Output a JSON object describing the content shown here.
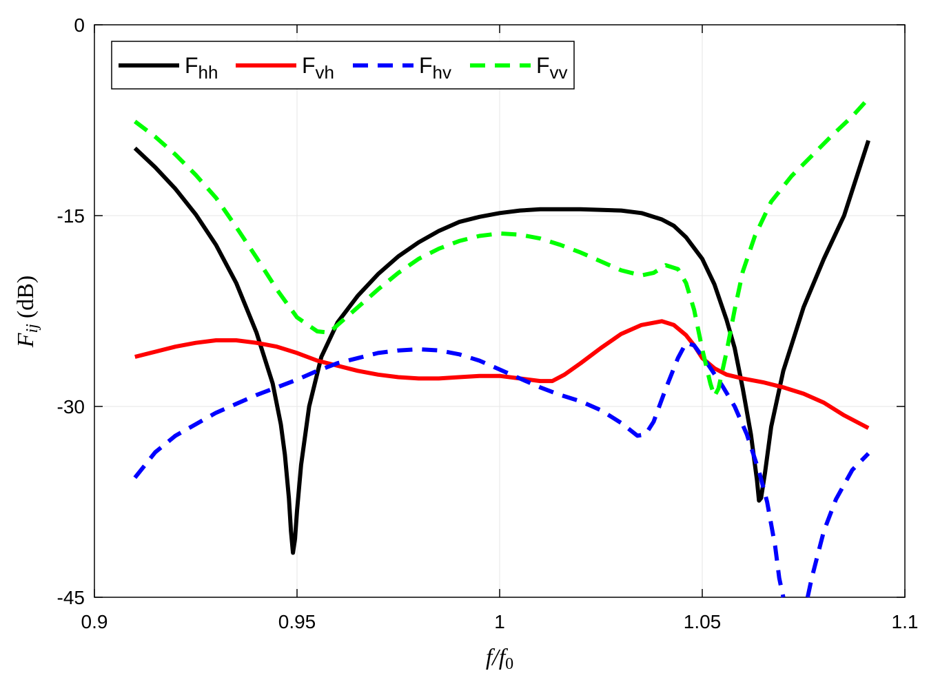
{
  "chart_data": {
    "type": "line",
    "xlabel": {
      "f": "f",
      "slash": "/",
      "f0": "f",
      "sub0": "0"
    },
    "ylabel": {
      "F": "F",
      "sub": "ij",
      "unit": "(dB)"
    },
    "xlim": [
      0.9,
      1.1
    ],
    "ylim": [
      -45,
      0
    ],
    "xticks": [
      0.9,
      0.95,
      1.0,
      1.05,
      1.1
    ],
    "xtick_labels": [
      "0.9",
      "0.95",
      "1",
      "1.05",
      "1.1"
    ],
    "yticks": [
      -45,
      -30,
      -15,
      0
    ],
    "ytick_labels": [
      "-45",
      "-30",
      "-15",
      "0"
    ],
    "grid": true,
    "legend_position": "top-left, horizontal",
    "series": [
      {
        "name": "F",
        "sub": "hh",
        "color": "#000000",
        "style": "solid",
        "points": [
          [
            0.91,
            -9.7
          ],
          [
            0.915,
            -11.2
          ],
          [
            0.92,
            -12.9
          ],
          [
            0.925,
            -14.9
          ],
          [
            0.93,
            -17.3
          ],
          [
            0.935,
            -20.3
          ],
          [
            0.94,
            -24.2
          ],
          [
            0.944,
            -28.2
          ],
          [
            0.946,
            -31.4
          ],
          [
            0.947,
            -33.8
          ],
          [
            0.948,
            -37.2
          ],
          [
            0.9485,
            -39.8
          ],
          [
            0.949,
            -41.5
          ],
          [
            0.9495,
            -40.4
          ],
          [
            0.95,
            -38.2
          ],
          [
            0.951,
            -34.6
          ],
          [
            0.953,
            -30.0
          ],
          [
            0.956,
            -26.1
          ],
          [
            0.96,
            -23.4
          ],
          [
            0.965,
            -21.3
          ],
          [
            0.97,
            -19.6
          ],
          [
            0.975,
            -18.2
          ],
          [
            0.98,
            -17.1
          ],
          [
            0.985,
            -16.2
          ],
          [
            0.99,
            -15.5
          ],
          [
            0.995,
            -15.1
          ],
          [
            1.0,
            -14.8
          ],
          [
            1.005,
            -14.6
          ],
          [
            1.01,
            -14.5
          ],
          [
            1.02,
            -14.5
          ],
          [
            1.03,
            -14.6
          ],
          [
            1.035,
            -14.8
          ],
          [
            1.04,
            -15.3
          ],
          [
            1.043,
            -15.8
          ],
          [
            1.046,
            -16.7
          ],
          [
            1.05,
            -18.4
          ],
          [
            1.053,
            -20.4
          ],
          [
            1.056,
            -23.2
          ],
          [
            1.058,
            -25.4
          ],
          [
            1.06,
            -28.6
          ],
          [
            1.062,
            -32.2
          ],
          [
            1.0635,
            -35.8
          ],
          [
            1.064,
            -37.4
          ],
          [
            1.0645,
            -37.2
          ],
          [
            1.0655,
            -35.2
          ],
          [
            1.067,
            -31.6
          ],
          [
            1.07,
            -27.2
          ],
          [
            1.075,
            -22.2
          ],
          [
            1.08,
            -18.4
          ],
          [
            1.085,
            -15.0
          ],
          [
            1.091,
            -9.1
          ]
        ]
      },
      {
        "name": "F",
        "sub": "vh",
        "color": "#ff0000",
        "style": "solid",
        "points": [
          [
            0.91,
            -26.1
          ],
          [
            0.915,
            -25.7
          ],
          [
            0.92,
            -25.3
          ],
          [
            0.925,
            -25.0
          ],
          [
            0.93,
            -24.8
          ],
          [
            0.935,
            -24.8
          ],
          [
            0.94,
            -25.0
          ],
          [
            0.945,
            -25.3
          ],
          [
            0.95,
            -25.8
          ],
          [
            0.955,
            -26.4
          ],
          [
            0.96,
            -26.8
          ],
          [
            0.965,
            -27.2
          ],
          [
            0.97,
            -27.5
          ],
          [
            0.975,
            -27.7
          ],
          [
            0.98,
            -27.8
          ],
          [
            0.985,
            -27.8
          ],
          [
            0.99,
            -27.7
          ],
          [
            0.995,
            -27.6
          ],
          [
            1.0,
            -27.6
          ],
          [
            1.005,
            -27.8
          ],
          [
            1.01,
            -28.0
          ],
          [
            1.013,
            -28.0
          ],
          [
            1.016,
            -27.5
          ],
          [
            1.02,
            -26.6
          ],
          [
            1.025,
            -25.4
          ],
          [
            1.03,
            -24.3
          ],
          [
            1.035,
            -23.6
          ],
          [
            1.04,
            -23.3
          ],
          [
            1.043,
            -23.6
          ],
          [
            1.046,
            -24.4
          ],
          [
            1.048,
            -25.2
          ],
          [
            1.05,
            -26.2
          ],
          [
            1.053,
            -27.0
          ],
          [
            1.056,
            -27.5
          ],
          [
            1.06,
            -27.8
          ],
          [
            1.065,
            -28.1
          ],
          [
            1.07,
            -28.5
          ],
          [
            1.075,
            -29.0
          ],
          [
            1.08,
            -29.7
          ],
          [
            1.085,
            -30.7
          ],
          [
            1.091,
            -31.7
          ]
        ]
      },
      {
        "name": "F",
        "sub": "hv",
        "color": "#0000ff",
        "style": "dashed",
        "points": [
          [
            0.91,
            -35.6
          ],
          [
            0.915,
            -33.6
          ],
          [
            0.92,
            -32.3
          ],
          [
            0.925,
            -31.4
          ],
          [
            0.93,
            -30.5
          ],
          [
            0.935,
            -29.8
          ],
          [
            0.94,
            -29.1
          ],
          [
            0.945,
            -28.5
          ],
          [
            0.95,
            -27.9
          ],
          [
            0.955,
            -27.2
          ],
          [
            0.96,
            -26.6
          ],
          [
            0.965,
            -26.2
          ],
          [
            0.97,
            -25.8
          ],
          [
            0.975,
            -25.6
          ],
          [
            0.98,
            -25.5
          ],
          [
            0.985,
            -25.6
          ],
          [
            0.99,
            -25.9
          ],
          [
            0.995,
            -26.4
          ],
          [
            1.0,
            -27.1
          ],
          [
            1.005,
            -27.8
          ],
          [
            1.01,
            -28.5
          ],
          [
            1.015,
            -29.1
          ],
          [
            1.02,
            -29.6
          ],
          [
            1.025,
            -30.3
          ],
          [
            1.03,
            -31.3
          ],
          [
            1.034,
            -32.3
          ],
          [
            1.036,
            -32.2
          ],
          [
            1.038,
            -31.2
          ],
          [
            1.041,
            -28.6
          ],
          [
            1.044,
            -26.2
          ],
          [
            1.046,
            -25.0
          ],
          [
            1.048,
            -25.2
          ],
          [
            1.051,
            -26.5
          ],
          [
            1.055,
            -28.4
          ],
          [
            1.058,
            -30.0
          ],
          [
            1.061,
            -32.2
          ],
          [
            1.064,
            -35.1
          ],
          [
            1.066,
            -37.5
          ],
          [
            1.068,
            -41.0
          ],
          [
            1.069,
            -43.5
          ],
          [
            1.07,
            -45.0
          ]
        ]
      },
      {
        "name": "",
        "color": "#0000ff",
        "style": "dashed",
        "points": [
          [
            1.076,
            -45.0
          ],
          [
            1.077,
            -43.5
          ],
          [
            1.08,
            -39.8
          ],
          [
            1.083,
            -37.3
          ],
          [
            1.087,
            -35.0
          ],
          [
            1.091,
            -33.7
          ]
        ]
      },
      {
        "name": "F",
        "sub": "vv",
        "color": "#00ff00",
        "style": "dashed",
        "points": [
          [
            0.91,
            -7.6
          ],
          [
            0.915,
            -8.8
          ],
          [
            0.92,
            -10.2
          ],
          [
            0.925,
            -11.8
          ],
          [
            0.93,
            -13.6
          ],
          [
            0.935,
            -15.9
          ],
          [
            0.94,
            -18.3
          ],
          [
            0.945,
            -20.8
          ],
          [
            0.95,
            -23.0
          ],
          [
            0.955,
            -24.1
          ],
          [
            0.958,
            -24.2
          ],
          [
            0.96,
            -23.6
          ],
          [
            0.965,
            -22.2
          ],
          [
            0.97,
            -20.8
          ],
          [
            0.975,
            -19.5
          ],
          [
            0.98,
            -18.4
          ],
          [
            0.985,
            -17.6
          ],
          [
            0.99,
            -17.0
          ],
          [
            0.995,
            -16.6
          ],
          [
            1.0,
            -16.4
          ],
          [
            1.005,
            -16.5
          ],
          [
            1.01,
            -16.8
          ],
          [
            1.015,
            -17.3
          ],
          [
            1.02,
            -17.9
          ],
          [
            1.025,
            -18.6
          ],
          [
            1.03,
            -19.3
          ],
          [
            1.035,
            -19.7
          ],
          [
            1.038,
            -19.5
          ],
          [
            1.041,
            -18.9
          ],
          [
            1.044,
            -19.2
          ],
          [
            1.046,
            -20.3
          ],
          [
            1.048,
            -22.4
          ],
          [
            1.05,
            -25.5
          ],
          [
            1.052,
            -28.2
          ],
          [
            1.053,
            -29.2
          ],
          [
            1.054,
            -28.6
          ],
          [
            1.056,
            -25.7
          ],
          [
            1.058,
            -22.4
          ],
          [
            1.06,
            -19.4
          ],
          [
            1.063,
            -16.6
          ],
          [
            1.067,
            -13.9
          ],
          [
            1.072,
            -11.9
          ],
          [
            1.077,
            -10.3
          ],
          [
            1.082,
            -8.7
          ],
          [
            1.087,
            -7.2
          ],
          [
            1.091,
            -5.8
          ]
        ]
      }
    ]
  }
}
